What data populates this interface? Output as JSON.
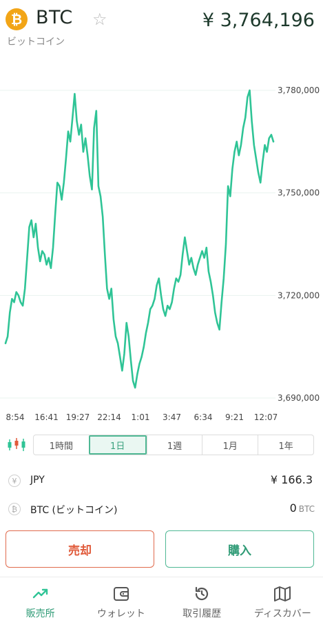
{
  "header": {
    "logo_symbol": "₿",
    "ticker": "BTC",
    "star_icon": "☆",
    "price": "¥ 3,764,196",
    "coin_name": "ビットコイン"
  },
  "chart_data": {
    "type": "line",
    "color": "#2fc496",
    "y_tick_labels": [
      "3,780,000",
      "3,750,000",
      "3,720,000",
      "3,690,000"
    ],
    "y_ticks": [
      3780000,
      3750000,
      3720000,
      3690000
    ],
    "ylim": [
      3690000,
      3780000
    ],
    "x_tick_labels": [
      "8:54",
      "16:41",
      "19:27",
      "22:14",
      "1:01",
      "3:47",
      "6:34",
      "9:21",
      "12:07"
    ],
    "grid": "horizontal",
    "values": [
      3706000,
      3708000,
      3715000,
      3719000,
      3718000,
      3721000,
      3720000,
      3718000,
      3717000,
      3722000,
      3731000,
      3740000,
      3742000,
      3737000,
      3741000,
      3734000,
      3730000,
      3733000,
      3732000,
      3729000,
      3731000,
      3728000,
      3734000,
      3744000,
      3753000,
      3752000,
      3748000,
      3753000,
      3760000,
      3768000,
      3765000,
      3772000,
      3779000,
      3771000,
      3767000,
      3770000,
      3762000,
      3766000,
      3761000,
      3755000,
      3751000,
      3769000,
      3774000,
      3752000,
      3749000,
      3743000,
      3732000,
      3722000,
      3719000,
      3722000,
      3713000,
      3708000,
      3706000,
      3702000,
      3698000,
      3703000,
      3712000,
      3708000,
      3701000,
      3695000,
      3693000,
      3697000,
      3700000,
      3702000,
      3705000,
      3709000,
      3712000,
      3716000,
      3717000,
      3719000,
      3723000,
      3725000,
      3720000,
      3716000,
      3714000,
      3717000,
      3716000,
      3718000,
      3722000,
      3725000,
      3724000,
      3726000,
      3732000,
      3737000,
      3733000,
      3729000,
      3731000,
      3728000,
      3726000,
      3729000,
      3731000,
      3733000,
      3731000,
      3734000,
      3727000,
      3724000,
      3720000,
      3715000,
      3712000,
      3710000,
      3718000,
      3725000,
      3735000,
      3752000,
      3749000,
      3757000,
      3762000,
      3765000,
      3761000,
      3764000,
      3769000,
      3772000,
      3778000,
      3780000,
      3771000,
      3764000,
      3760000,
      3756000,
      3753000,
      3759000,
      3764000,
      3762000,
      3766000,
      3767000,
      3765000
    ]
  },
  "ranges": {
    "candle_icon": "candlestick-icon",
    "tabs": [
      "1時間",
      "1日",
      "1週",
      "1月",
      "1年"
    ],
    "active_index": 1
  },
  "assets": [
    {
      "icon": "¥",
      "label": "JPY",
      "value": "¥ 166.3",
      "unit": ""
    },
    {
      "icon": "₿",
      "label": "BTC (ビットコイン)",
      "value": "0",
      "unit": "BTC"
    }
  ],
  "actions": {
    "sell_label": "売却",
    "buy_label": "購入"
  },
  "nav": {
    "items": [
      {
        "label": "販売所",
        "icon": "trend-up-icon"
      },
      {
        "label": "ウォレット",
        "icon": "wallet-icon"
      },
      {
        "label": "取引履歴",
        "icon": "history-icon"
      },
      {
        "label": "ディスカバー",
        "icon": "map-icon"
      }
    ],
    "active_index": 0
  }
}
